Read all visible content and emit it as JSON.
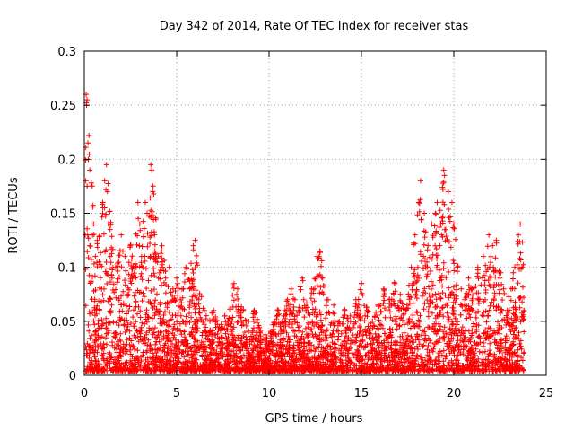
{
  "chart_data": {
    "type": "scatter",
    "title": "Day 342 of 2014, Rate Of TEC Index for receiver stas",
    "xlabel": "GPS time / hours",
    "ylabel": "ROTI / TECUs",
    "xlim": [
      0,
      25
    ],
    "ylim": [
      0,
      0.3
    ],
    "xticks": [
      0,
      5,
      10,
      15,
      20,
      25
    ],
    "xtick_labels": [
      "0",
      "5",
      "10",
      "15",
      "20",
      "25"
    ],
    "yticks": [
      0,
      0.05,
      0.1,
      0.15,
      0.2,
      0.25,
      0.3
    ],
    "ytick_labels": [
      "0",
      "0.05",
      "0.1",
      "0.15",
      "0.2",
      "0.25",
      "0.3"
    ],
    "grid": true,
    "marker": "+",
    "series": [
      {
        "name": "ROTI",
        "color": "#ff0000",
        "points": [
          [
            0.1,
            0.26
          ],
          [
            0.12,
            0.25
          ],
          [
            0.15,
            0.255
          ],
          [
            0.2,
            0.215
          ],
          [
            0.25,
            0.222
          ],
          [
            0.08,
            0.18
          ],
          [
            0.15,
            0.175
          ],
          [
            0.22,
            0.2
          ],
          [
            0.3,
            0.19
          ],
          [
            0.05,
            0.13
          ],
          [
            0.18,
            0.13
          ],
          [
            0.3,
            0.12
          ],
          [
            0.5,
            0.14
          ],
          [
            0.6,
            0.11
          ],
          [
            0.7,
            0.125
          ],
          [
            0.8,
            0.105
          ],
          [
            1.0,
            0.16
          ],
          [
            1.1,
            0.18
          ],
          [
            1.2,
            0.195
          ],
          [
            1.25,
            0.17
          ],
          [
            1.3,
            0.14
          ],
          [
            1.4,
            0.11
          ],
          [
            1.5,
            0.09
          ],
          [
            1.7,
            0.1
          ],
          [
            2.0,
            0.13
          ],
          [
            2.2,
            0.11
          ],
          [
            2.5,
            0.12
          ],
          [
            2.6,
            0.09
          ],
          [
            2.9,
            0.16
          ],
          [
            3.0,
            0.14
          ],
          [
            3.1,
            0.11
          ],
          [
            3.3,
            0.16
          ],
          [
            3.4,
            0.15
          ],
          [
            3.6,
            0.195
          ],
          [
            3.65,
            0.19
          ],
          [
            3.7,
            0.17
          ],
          [
            3.8,
            0.13
          ],
          [
            4.0,
            0.11
          ],
          [
            4.2,
            0.12
          ],
          [
            4.4,
            0.09
          ],
          [
            4.6,
            0.1
          ],
          [
            4.8,
            0.08
          ],
          [
            5.0,
            0.09
          ],
          [
            5.2,
            0.07
          ],
          [
            5.5,
            0.1
          ],
          [
            5.7,
            0.08
          ],
          [
            5.9,
            0.12
          ],
          [
            6.0,
            0.125
          ],
          [
            6.2,
            0.07
          ],
          [
            6.5,
            0.06
          ],
          [
            6.8,
            0.05
          ],
          [
            7.0,
            0.06
          ],
          [
            7.3,
            0.045
          ],
          [
            7.6,
            0.055
          ],
          [
            7.9,
            0.05
          ],
          [
            8.1,
            0.085
          ],
          [
            8.3,
            0.08
          ],
          [
            8.6,
            0.06
          ],
          [
            8.9,
            0.05
          ],
          [
            9.2,
            0.06
          ],
          [
            9.5,
            0.04
          ],
          [
            9.8,
            0.035
          ],
          [
            10.0,
            0.03
          ],
          [
            10.3,
            0.05
          ],
          [
            10.5,
            0.06
          ],
          [
            10.8,
            0.055
          ],
          [
            11.0,
            0.07
          ],
          [
            11.2,
            0.08
          ],
          [
            11.4,
            0.07
          ],
          [
            11.6,
            0.06
          ],
          [
            11.8,
            0.09
          ],
          [
            12.0,
            0.06
          ],
          [
            12.3,
            0.08
          ],
          [
            12.6,
            0.11
          ],
          [
            12.75,
            0.115
          ],
          [
            12.9,
            0.09
          ],
          [
            13.2,
            0.07
          ],
          [
            13.5,
            0.065
          ],
          [
            13.8,
            0.05
          ],
          [
            14.1,
            0.06
          ],
          [
            14.4,
            0.055
          ],
          [
            14.7,
            0.07
          ],
          [
            15.0,
            0.085
          ],
          [
            15.3,
            0.06
          ],
          [
            15.6,
            0.05
          ],
          [
            15.9,
            0.065
          ],
          [
            16.2,
            0.08
          ],
          [
            16.5,
            0.07
          ],
          [
            16.8,
            0.085
          ],
          [
            17.1,
            0.075
          ],
          [
            17.4,
            0.06
          ],
          [
            17.7,
            0.1
          ],
          [
            17.9,
            0.13
          ],
          [
            18.1,
            0.16
          ],
          [
            18.2,
            0.18
          ],
          [
            18.4,
            0.15
          ],
          [
            18.6,
            0.12
          ],
          [
            18.8,
            0.14
          ],
          [
            19.0,
            0.15
          ],
          [
            19.1,
            0.16
          ],
          [
            19.3,
            0.14
          ],
          [
            19.45,
            0.19
          ],
          [
            19.5,
            0.185
          ],
          [
            19.7,
            0.17
          ],
          [
            19.9,
            0.16
          ],
          [
            20.0,
            0.14
          ],
          [
            20.2,
            0.1
          ],
          [
            20.4,
            0.08
          ],
          [
            20.6,
            0.07
          ],
          [
            20.8,
            0.09
          ],
          [
            21.0,
            0.08
          ],
          [
            21.3,
            0.1
          ],
          [
            21.6,
            0.11
          ],
          [
            21.9,
            0.13
          ],
          [
            22.1,
            0.12
          ],
          [
            22.3,
            0.125
          ],
          [
            22.5,
            0.09
          ],
          [
            22.7,
            0.08
          ],
          [
            22.9,
            0.06
          ],
          [
            23.1,
            0.08
          ],
          [
            23.3,
            0.1
          ],
          [
            23.5,
            0.13
          ],
          [
            23.6,
            0.14
          ],
          [
            23.7,
            0.1
          ],
          [
            23.8,
            0.06
          ]
        ]
      }
    ]
  }
}
